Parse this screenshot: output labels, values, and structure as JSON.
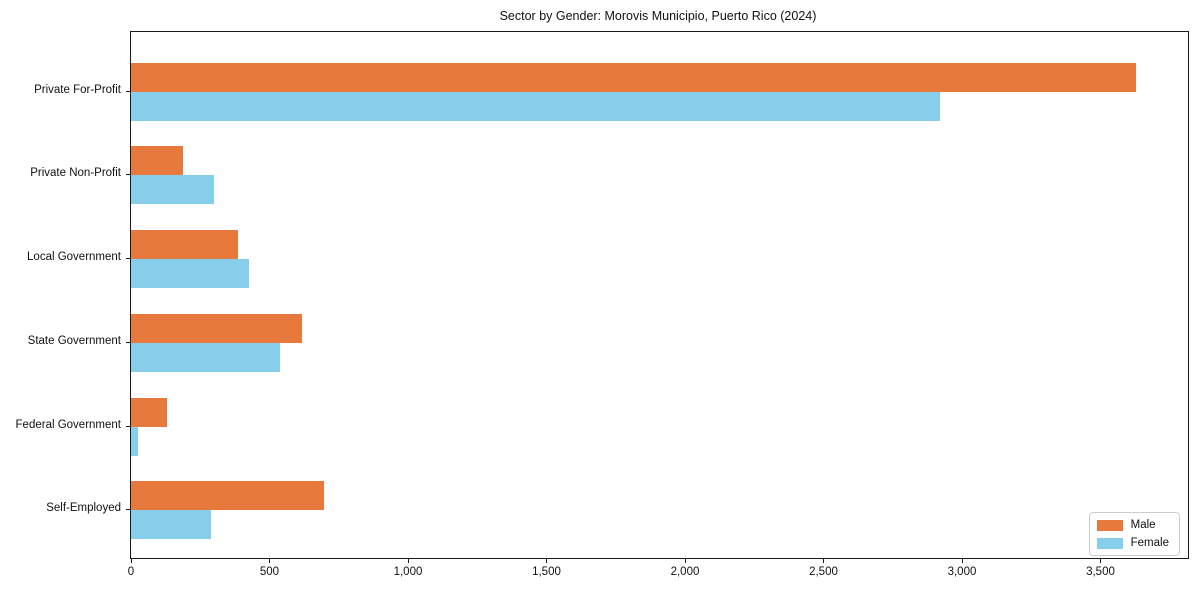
{
  "title": "Sector by Gender: Morovis Municipio, Puerto Rico (2024)",
  "colors": {
    "male": "#E8793C",
    "female": "#87CEEB",
    "axis": "#1a1a1a",
    "legend_border": "#cccccc",
    "background": "#ffffff"
  },
  "legend": {
    "position": "lower right",
    "items": [
      {
        "label": "Male",
        "color": "#E8793C"
      },
      {
        "label": "Female",
        "color": "#87CEEB"
      }
    ]
  },
  "chart_data": {
    "type": "bar",
    "orientation": "horizontal",
    "title": "Sector by Gender: Morovis Municipio, Puerto Rico (2024)",
    "xlabel": "",
    "ylabel": "",
    "categories": [
      "Private For-Profit",
      "Private Non-Profit",
      "Local Government",
      "State Government",
      "Federal Government",
      "Self-Employed"
    ],
    "series": [
      {
        "name": "Male",
        "color": "#E8793C",
        "values": [
          3628,
          187,
          387,
          617,
          130,
          698
        ]
      },
      {
        "name": "Female",
        "color": "#87CEEB",
        "values": [
          2921,
          301,
          425,
          538,
          24,
          289
        ]
      }
    ],
    "xlim": [
      0,
      3816
    ],
    "xticks": [
      0,
      500,
      1000,
      1500,
      2000,
      2500,
      3000,
      3500
    ],
    "xtick_labels": [
      "0",
      "500",
      "1,000",
      "1,500",
      "2,000",
      "2,500",
      "3,000",
      "3,500"
    ],
    "grid": false,
    "legend_position": "lower right"
  }
}
